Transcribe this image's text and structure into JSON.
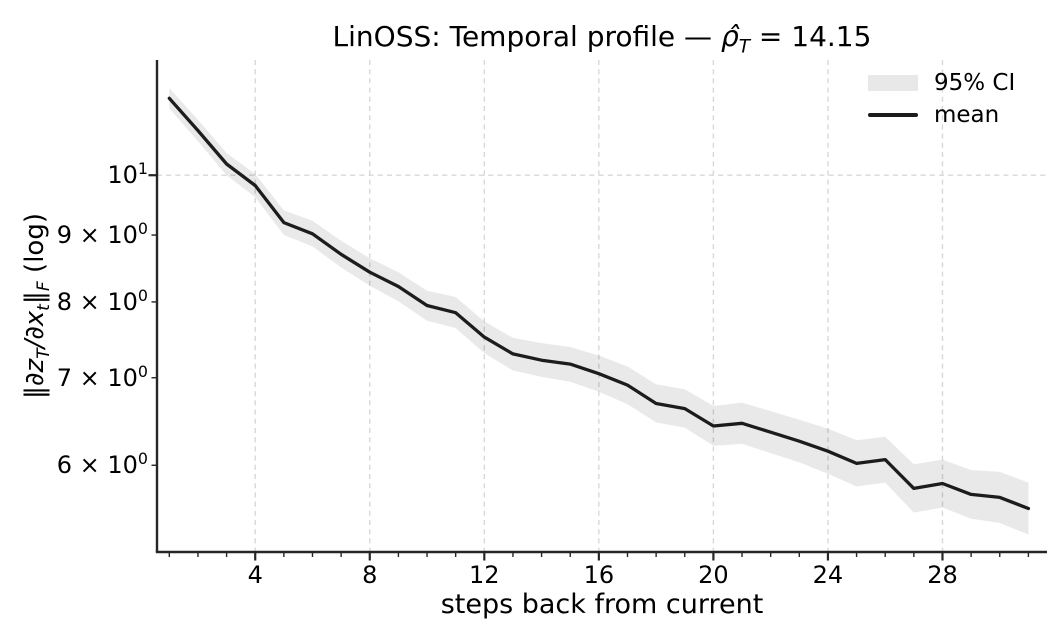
{
  "title": {
    "prefix": "LinOSS: Temporal profile — ",
    "rho_hat": "ρ̂",
    "rho_sub": "T",
    "suffix": " = 14.15"
  },
  "legend": {
    "ci_label": "95% CI",
    "mean_label": "mean"
  },
  "axes": {
    "xlabel": "steps back from current",
    "ylabel_parts": {
      "open_norm": "‖∂z",
      "sub_T": "T",
      "mid": "/∂x",
      "sub_t": "t",
      "close_norm": "‖",
      "sub_F": "F",
      "suffix": " (log)"
    },
    "x_major_ticks": [
      4,
      8,
      12,
      16,
      20,
      24,
      28
    ],
    "y_tick_labels": [
      {
        "value": 10,
        "base": "10",
        "exp": "1"
      },
      {
        "value": 9,
        "base": "9 × 10",
        "exp": "0"
      },
      {
        "value": 8,
        "base": "8 × 10",
        "exp": "0"
      },
      {
        "value": 7,
        "base": "7 × 10",
        "exp": "0"
      },
      {
        "value": 6,
        "base": "6 × 10",
        "exp": "0"
      }
    ]
  },
  "chart_data": {
    "type": "line",
    "title": "LinOSS: Temporal profile — ρ̂_T = 14.15",
    "xlabel": "steps back from current",
    "ylabel": "‖∂z_T/∂x_t‖_F (log)",
    "yscale": "log",
    "xlim": [
      0.57,
      31.65
    ],
    "ylim": [
      5.15,
      12.25
    ],
    "grid": true,
    "legend_position": "upper right",
    "x": [
      1,
      2,
      3,
      4,
      5,
      6,
      7,
      8,
      9,
      10,
      11,
      12,
      13,
      14,
      15,
      16,
      17,
      18,
      19,
      20,
      21,
      22,
      23,
      24,
      25,
      26,
      27,
      28,
      29,
      30,
      31
    ],
    "series": [
      {
        "name": "mean",
        "values": [
          11.45,
          10.82,
          10.2,
          9.82,
          9.2,
          9.02,
          8.7,
          8.43,
          8.22,
          7.95,
          7.85,
          7.52,
          7.3,
          7.22,
          7.17,
          7.05,
          6.91,
          6.69,
          6.63,
          6.43,
          6.46,
          6.36,
          6.26,
          6.15,
          6.02,
          6.06,
          5.76,
          5.81,
          5.7,
          5.67,
          5.56
        ]
      },
      {
        "name": "ci95_upper",
        "values": [
          11.66,
          11.03,
          10.4,
          10.02,
          9.4,
          9.23,
          8.91,
          8.64,
          8.43,
          8.16,
          8.07,
          7.73,
          7.51,
          7.44,
          7.39,
          7.28,
          7.14,
          6.92,
          6.86,
          6.66,
          6.7,
          6.6,
          6.5,
          6.4,
          6.27,
          6.31,
          6.01,
          6.06,
          5.95,
          5.93,
          5.82
        ]
      },
      {
        "name": "ci95_lower",
        "values": [
          11.25,
          10.62,
          10.0,
          9.62,
          9.0,
          8.82,
          8.5,
          8.23,
          8.01,
          7.74,
          7.64,
          7.31,
          7.09,
          7.01,
          6.95,
          6.83,
          6.68,
          6.47,
          6.41,
          6.21,
          6.23,
          6.13,
          6.03,
          5.91,
          5.78,
          5.82,
          5.52,
          5.57,
          5.46,
          5.42,
          5.31
        ]
      }
    ],
    "colors": {
      "mean_line": "#1c1c1c",
      "ci_band": "#e8e8e8",
      "grid": "#d8d8d8",
      "spine": "#262626",
      "text": "#000000",
      "background": "#ffffff"
    }
  }
}
